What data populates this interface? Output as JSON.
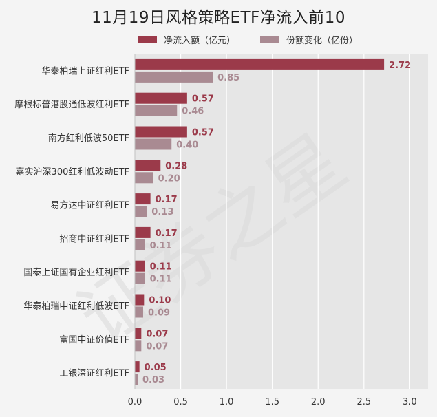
{
  "chart_data": {
    "type": "bar",
    "orientation": "horizontal",
    "title": "11月19日风格策略ETF净流入前10",
    "categories": [
      "华泰柏瑞上证红利ETF",
      "摩根标普港股通低波红利ETF",
      "南方红利低波50ETF",
      "嘉实沪深300红利低波动ETF",
      "易方达中证红利ETF",
      "招商中证红利ETF",
      "国泰上证国有企业红利ETF",
      "华泰柏瑞中证红利低波ETF",
      "富国中证价值ETF",
      "工银深证红利ETF"
    ],
    "series": [
      {
        "name": "净流入额（亿元）",
        "color": "#9b3a4a",
        "values": [
          2.72,
          0.57,
          0.57,
          0.28,
          0.17,
          0.17,
          0.11,
          0.1,
          0.07,
          0.05
        ],
        "labels": [
          "2.72",
          "0.57",
          "0.57",
          "0.28",
          "0.17",
          "0.17",
          "0.11",
          "0.10",
          "0.07",
          "0.05"
        ]
      },
      {
        "name": "份额变化（亿份）",
        "color": "#a98a92",
        "values": [
          0.85,
          0.46,
          0.4,
          0.2,
          0.13,
          0.11,
          0.11,
          0.09,
          0.07,
          0.03
        ],
        "labels": [
          "0.85",
          "0.46",
          "0.40",
          "0.20",
          "0.13",
          "0.11",
          "0.11",
          "0.09",
          "0.07",
          "0.03"
        ]
      }
    ],
    "xlim": [
      0,
      3.2
    ],
    "xticks": [
      0.0,
      0.5,
      1.0,
      1.5,
      2.0,
      2.5,
      3.0
    ],
    "xtick_labels": [
      "0.0",
      "0.5",
      "1.0",
      "1.5",
      "2.0",
      "2.5",
      "3.0"
    ],
    "grid": true,
    "legend_position": "top"
  },
  "watermark": "证券之星"
}
